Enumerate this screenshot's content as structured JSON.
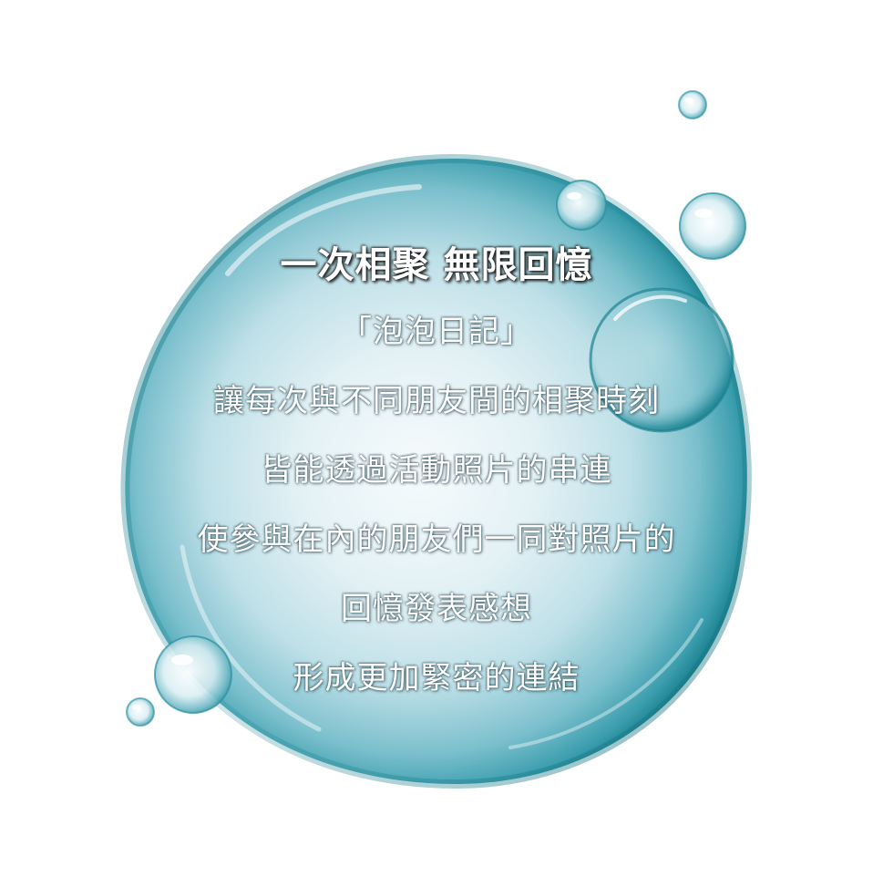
{
  "headline": "一次相聚 無限回憶",
  "lines": [
    "「泡泡日記」",
    "讓每次與不同朋友間的相聚時刻",
    "皆能透過活動照片的串連",
    "使參與在內的朋友們一同對照片的",
    "回憶發表感想",
    "形成更加緊密的連結"
  ],
  "colors": {
    "bubble_edge": "#1f8a97",
    "bubble_center": "#eef7fa",
    "text": "#ffffff"
  },
  "icons": [
    "water-bubble"
  ]
}
